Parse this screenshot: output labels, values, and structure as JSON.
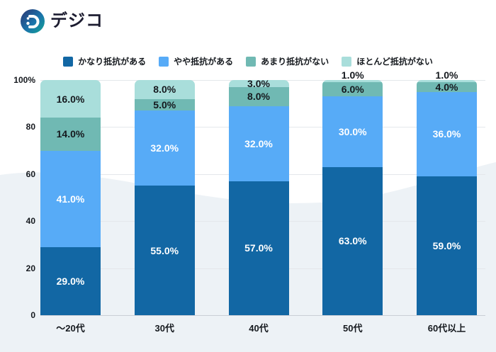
{
  "logo": {
    "text": "デジコ",
    "icon": "digico-logo-icon"
  },
  "chart_data": {
    "type": "bar",
    "stacked": true,
    "title": "",
    "categories": [
      "～20代",
      "30代",
      "40代",
      "50代",
      "60代以上"
    ],
    "series": [
      {
        "name": "かなり抵抗がある",
        "color": "#1267a4",
        "label_color": "#ffffff",
        "values": [
          29,
          55,
          57,
          63,
          59
        ]
      },
      {
        "name": "やや抵抗がある",
        "color": "#57abf7",
        "label_color": "#ffffff",
        "values": [
          41,
          32,
          32,
          30,
          36
        ]
      },
      {
        "name": "あまり抵抗がない",
        "color": "#70b9b3",
        "label_color": "#15191e",
        "values": [
          14,
          5,
          8,
          6,
          4
        ]
      },
      {
        "name": "ほとんど抵抗がない",
        "color": "#a9dedb",
        "label_color": "#15191e",
        "values": [
          16,
          8,
          3,
          1,
          1
        ]
      }
    ],
    "value_label_format": "#.0%",
    "xlabel": "",
    "ylabel": "",
    "ylim": [
      0,
      100
    ],
    "yticks": [
      "0",
      "20",
      "40",
      "60",
      "80",
      "100%"
    ],
    "grid": true,
    "legend_position": "top"
  }
}
